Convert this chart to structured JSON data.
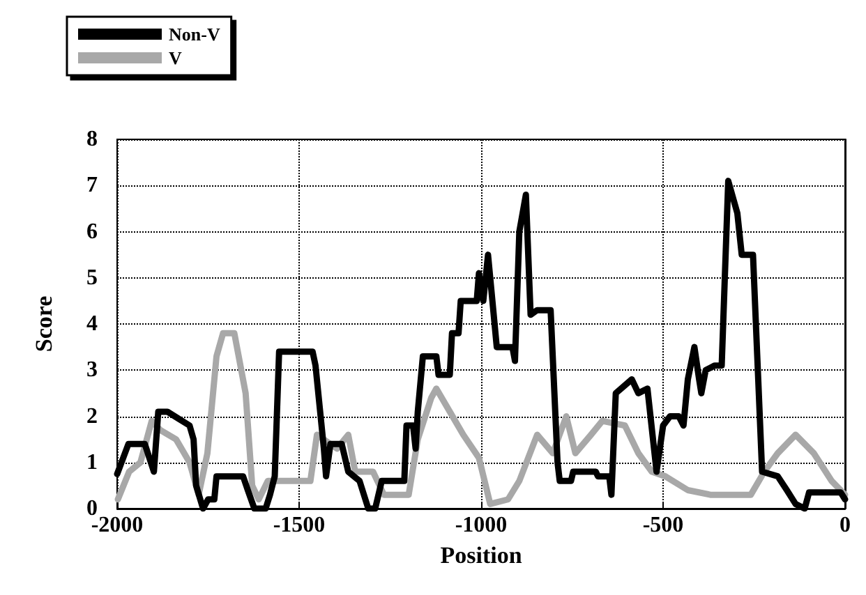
{
  "chart_data": {
    "type": "line",
    "xlabel": "Position",
    "ylabel": "Score",
    "xlim": [
      -2000,
      0
    ],
    "xticks": [
      -2000,
      -1500,
      -1000,
      -500,
      0
    ],
    "ylim": [
      0,
      8
    ],
    "yticks": [
      0,
      1,
      2,
      3,
      4,
      5,
      6,
      7,
      8
    ],
    "grid": true,
    "legend": "top left",
    "marker": "none",
    "line_style": "solid",
    "series": [
      {
        "name": "Non-V",
        "color": "#000000",
        "x": [
          -2000,
          -1969,
          -1924,
          -1899,
          -1887,
          -1862,
          -1801,
          -1790,
          -1783,
          -1764,
          -1750,
          -1733,
          -1727,
          -1654,
          -1641,
          -1623,
          -1592,
          -1580,
          -1567,
          -1555,
          -1463,
          -1455,
          -1432,
          -1426,
          -1414,
          -1383,
          -1365,
          -1334,
          -1310,
          -1291,
          -1273,
          -1211,
          -1205,
          -1187,
          -1180,
          -1174,
          -1160,
          -1123,
          -1117,
          -1086,
          -1080,
          -1062,
          -1056,
          -1012,
          -1006,
          -994,
          -981,
          -957,
          -914,
          -907,
          -895,
          -877,
          -864,
          -846,
          -809,
          -790,
          -784,
          -753,
          -747,
          -685,
          -679,
          -648,
          -642,
          -630,
          -586,
          -568,
          -543,
          -518,
          -500,
          -481,
          -457,
          -444,
          -432,
          -414,
          -401,
          -395,
          -383,
          -358,
          -339,
          -321,
          -296,
          -284,
          -253,
          -228,
          -185,
          -160,
          -136,
          -111,
          -99,
          -12,
          0
        ],
        "values": [
          0.75,
          1.4,
          1.4,
          0.8,
          2.1,
          2.1,
          1.8,
          1.5,
          0.5,
          0,
          0.2,
          0.2,
          0.7,
          0.7,
          0.4,
          0,
          0,
          0.3,
          0.7,
          3.4,
          3.4,
          3.1,
          1.3,
          0.7,
          1.4,
          1.4,
          0.8,
          0.6,
          0,
          0,
          0.6,
          0.6,
          1.8,
          1.8,
          1.3,
          2.1,
          3.3,
          3.3,
          2.9,
          2.9,
          3.8,
          3.8,
          4.5,
          4.5,
          5.1,
          4.5,
          5.5,
          3.5,
          3.5,
          3.2,
          6.0,
          6.8,
          4.2,
          4.3,
          4.3,
          1.0,
          0.6,
          0.6,
          0.8,
          0.8,
          0.7,
          0.7,
          0.3,
          2.5,
          2.8,
          2.5,
          2.6,
          0.8,
          1.8,
          2.0,
          2.0,
          1.8,
          2.8,
          3.5,
          2.8,
          2.5,
          3.0,
          3.1,
          3.1,
          7.1,
          6.4,
          5.5,
          5.5,
          0.8,
          0.7,
          0.4,
          0.1,
          0,
          0.35,
          0.35,
          0.2
        ]
      },
      {
        "name": "V",
        "color": "#a8a8a8",
        "x": [
          -1998,
          -1967,
          -1936,
          -1905,
          -1881,
          -1838,
          -1801,
          -1776,
          -1752,
          -1727,
          -1709,
          -1678,
          -1647,
          -1629,
          -1611,
          -1586,
          -1543,
          -1469,
          -1451,
          -1396,
          -1365,
          -1346,
          -1297,
          -1267,
          -1199,
          -1174,
          -1137,
          -1123,
          -1086,
          -1049,
          -1006,
          -975,
          -926,
          -895,
          -846,
          -803,
          -766,
          -741,
          -698,
          -667,
          -605,
          -568,
          -531,
          -494,
          -432,
          -370,
          -309,
          -259,
          -222,
          -185,
          -136,
          -86,
          -37,
          0
        ],
        "values": [
          0.2,
          0.8,
          1.0,
          1.9,
          1.7,
          1.5,
          1.0,
          0.3,
          1.2,
          3.3,
          3.8,
          3.8,
          2.5,
          0.5,
          0.2,
          0.6,
          0.6,
          0.6,
          1.6,
          1.3,
          1.6,
          0.8,
          0.8,
          0.3,
          0.3,
          1.5,
          2.4,
          2.6,
          2.1,
          1.6,
          1.1,
          0.1,
          0.2,
          0.6,
          1.6,
          1.2,
          2.0,
          1.2,
          1.6,
          1.9,
          1.8,
          1.2,
          0.8,
          0.7,
          0.4,
          0.3,
          0.3,
          0.3,
          0.8,
          1.2,
          1.6,
          1.2,
          0.6,
          0.3
        ]
      }
    ]
  }
}
